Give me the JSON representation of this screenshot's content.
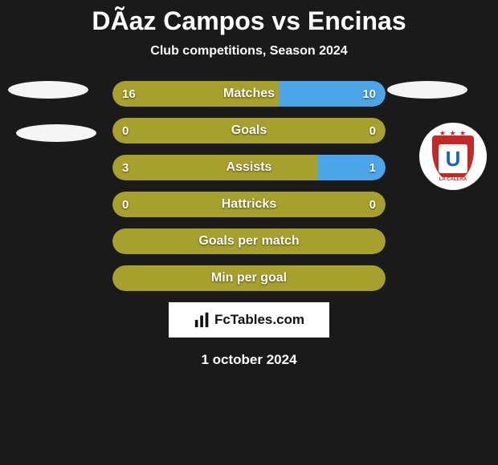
{
  "header": {
    "title": "DÃ­az Campos vs Encinas",
    "subtitle": "Club competitions, Season 2024"
  },
  "colors": {
    "background": "#1a1a1a",
    "bar_olive": "#a8a02c",
    "bar_blue": "#4aa6e8",
    "text": "#ffffff",
    "club_red": "#c62828",
    "club_blue": "#1565c0"
  },
  "stats": [
    {
      "label": "Matches",
      "left_val": "16",
      "right_val": "10",
      "left_fill_pct": 61,
      "right_fill_pct": 39,
      "left_color": "#a8a02c",
      "right_color": "#4aa6e8"
    },
    {
      "label": "Goals",
      "left_val": "0",
      "right_val": "0",
      "left_fill_pct": 100,
      "right_fill_pct": 0,
      "left_color": "#a8a02c",
      "right_color": "#4aa6e8"
    },
    {
      "label": "Assists",
      "left_val": "3",
      "right_val": "1",
      "left_fill_pct": 75,
      "right_fill_pct": 25,
      "left_color": "#a8a02c",
      "right_color": "#4aa6e8"
    },
    {
      "label": "Hattricks",
      "left_val": "0",
      "right_val": "0",
      "left_fill_pct": 100,
      "right_fill_pct": 0,
      "left_color": "#a8a02c",
      "right_color": "#4aa6e8"
    },
    {
      "label": "Goals per match",
      "left_val": "",
      "right_val": "",
      "left_fill_pct": 100,
      "right_fill_pct": 0,
      "left_color": "#a8a02c",
      "right_color": "#4aa6e8"
    },
    {
      "label": "Min per goal",
      "left_val": "",
      "right_val": "",
      "left_fill_pct": 100,
      "right_fill_pct": 0,
      "left_color": "#a8a02c",
      "right_color": "#4aa6e8"
    }
  ],
  "club_badge": {
    "letter": "U",
    "banner": "LA CALERA",
    "stars": "★ ★ ★"
  },
  "footer": {
    "logo_text": "FcTables.com",
    "date": "1 october 2024"
  }
}
